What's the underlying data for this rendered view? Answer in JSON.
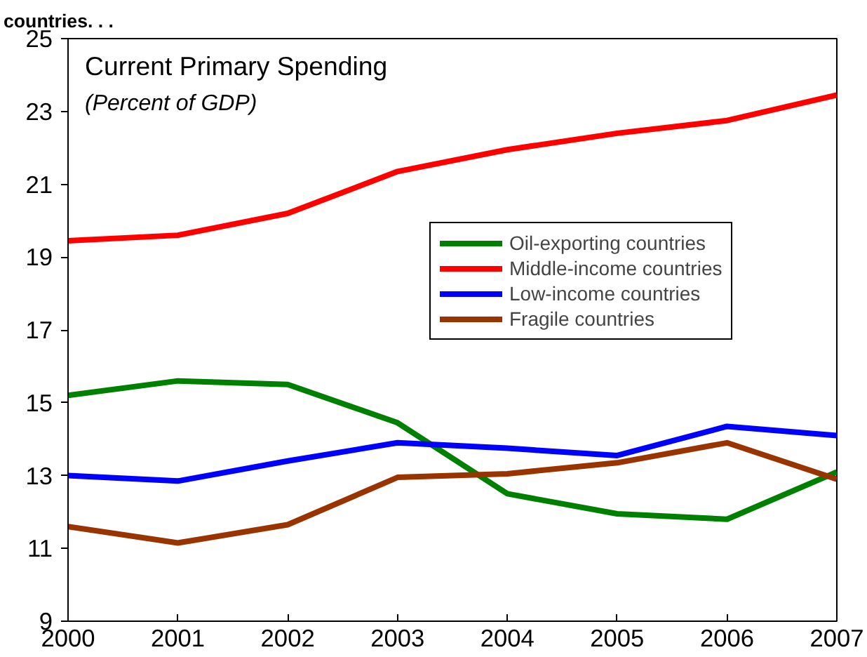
{
  "chart_data": {
    "type": "line",
    "title": "Current Primary Spending",
    "subtitle": "(Percent of GDP)",
    "annotations": [
      "countries. . ."
    ],
    "x": [
      2000,
      2001,
      2002,
      2003,
      2004,
      2005,
      2006,
      2007
    ],
    "xlim": [
      2000,
      2007
    ],
    "xticks": [
      2000,
      2001,
      2002,
      2003,
      2004,
      2005,
      2006,
      2007
    ],
    "ylim": [
      9,
      25
    ],
    "yticks": [
      9,
      11,
      13,
      15,
      17,
      19,
      21,
      23,
      25
    ],
    "grid": false,
    "legend": "top right",
    "line_style": "solid",
    "series": [
      {
        "name": "Oil-exporting countries",
        "color": "#008000",
        "values": [
          15.2,
          15.6,
          15.5,
          14.45,
          12.5,
          11.95,
          11.8,
          13.1
        ]
      },
      {
        "name": "Middle-income countries",
        "color": "#ff0000",
        "values": [
          19.45,
          19.6,
          20.2,
          21.35,
          21.95,
          22.4,
          22.75,
          23.45
        ]
      },
      {
        "name": "Low-income countries",
        "color": "#0000ff",
        "values": [
          13.0,
          12.85,
          13.4,
          13.9,
          13.75,
          13.55,
          14.35,
          14.1
        ]
      },
      {
        "name": "Fragile countries",
        "color": "#993300",
        "values": [
          11.6,
          11.15,
          11.65,
          12.95,
          13.05,
          13.35,
          13.9,
          12.9
        ]
      }
    ]
  }
}
